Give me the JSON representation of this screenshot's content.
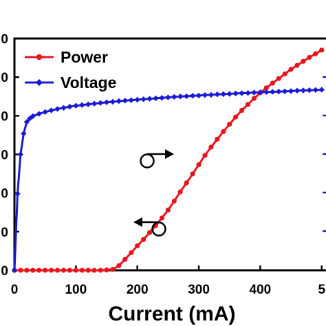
{
  "chart_data": {
    "type": "line",
    "xlabel": "Current (mA)",
    "x_ticks": [
      "0",
      "100",
      "200",
      "300",
      "400",
      "5"
    ],
    "xlim": [
      0,
      500
    ],
    "y_ticks_left": [
      "0",
      "0",
      "0",
      "0",
      "0",
      "0",
      "0"
    ],
    "legend_position": "top-left",
    "grid": false,
    "series": [
      {
        "name": "Power",
        "color": "#e8141c",
        "marker": "circle",
        "axis": "left",
        "x": [
          0,
          10,
          20,
          30,
          40,
          50,
          60,
          70,
          80,
          90,
          100,
          110,
          120,
          130,
          140,
          150,
          160,
          170,
          180,
          190,
          200,
          210,
          220,
          230,
          240,
          250,
          260,
          270,
          280,
          290,
          300,
          310,
          320,
          330,
          340,
          350,
          360,
          370,
          380,
          390,
          400,
          410,
          420,
          430,
          440,
          450,
          460,
          470,
          480,
          490,
          500
        ],
        "y": [
          0.0,
          0.0,
          0.0,
          0.0,
          0.0,
          0.0,
          0.0,
          0.0,
          0.0,
          0.0,
          0.0,
          0.0,
          0.0,
          0.0,
          0.0,
          0.01,
          0.03,
          0.14,
          0.33,
          0.53,
          0.74,
          0.93,
          1.14,
          1.35,
          1.58,
          1.82,
          2.09,
          2.37,
          2.64,
          2.91,
          3.19,
          3.47,
          3.72,
          3.96,
          4.19,
          4.41,
          4.63,
          4.83,
          5.01,
          5.19,
          5.36,
          5.51,
          5.65,
          5.79,
          5.93,
          6.07,
          6.19,
          6.31,
          6.43,
          6.54,
          6.65
        ]
      },
      {
        "name": "Voltage",
        "color": "#1a1ad6",
        "marker": "diamond",
        "axis": "right",
        "x": [
          0,
          5,
          10,
          15,
          20,
          25,
          30,
          40,
          50,
          60,
          70,
          80,
          90,
          100,
          110,
          120,
          130,
          140,
          150,
          160,
          170,
          180,
          190,
          200,
          210,
          220,
          230,
          240,
          250,
          260,
          270,
          280,
          290,
          300,
          310,
          320,
          330,
          340,
          350,
          360,
          370,
          380,
          390,
          400,
          410,
          420,
          430,
          440,
          450,
          460,
          470,
          480,
          490,
          500
        ],
        "y": [
          0.0,
          0.33,
          0.5,
          0.59,
          0.64,
          0.655,
          0.665,
          0.675,
          0.683,
          0.69,
          0.696,
          0.701,
          0.706,
          0.71,
          0.713,
          0.716,
          0.719,
          0.722,
          0.725,
          0.727,
          0.73,
          0.732,
          0.734,
          0.736,
          0.738,
          0.74,
          0.742,
          0.744,
          0.746,
          0.748,
          0.75,
          0.751,
          0.753,
          0.754,
          0.756,
          0.757,
          0.759,
          0.76,
          0.761,
          0.763,
          0.764,
          0.765,
          0.767,
          0.768,
          0.769,
          0.77,
          0.771,
          0.772,
          0.773,
          0.775,
          0.776,
          0.777,
          0.778,
          0.779
        ]
      }
    ],
    "annotations": [
      "circle-arrow-right (Voltage, right axis)",
      "circle-arrow-left (Power, left axis)"
    ]
  }
}
